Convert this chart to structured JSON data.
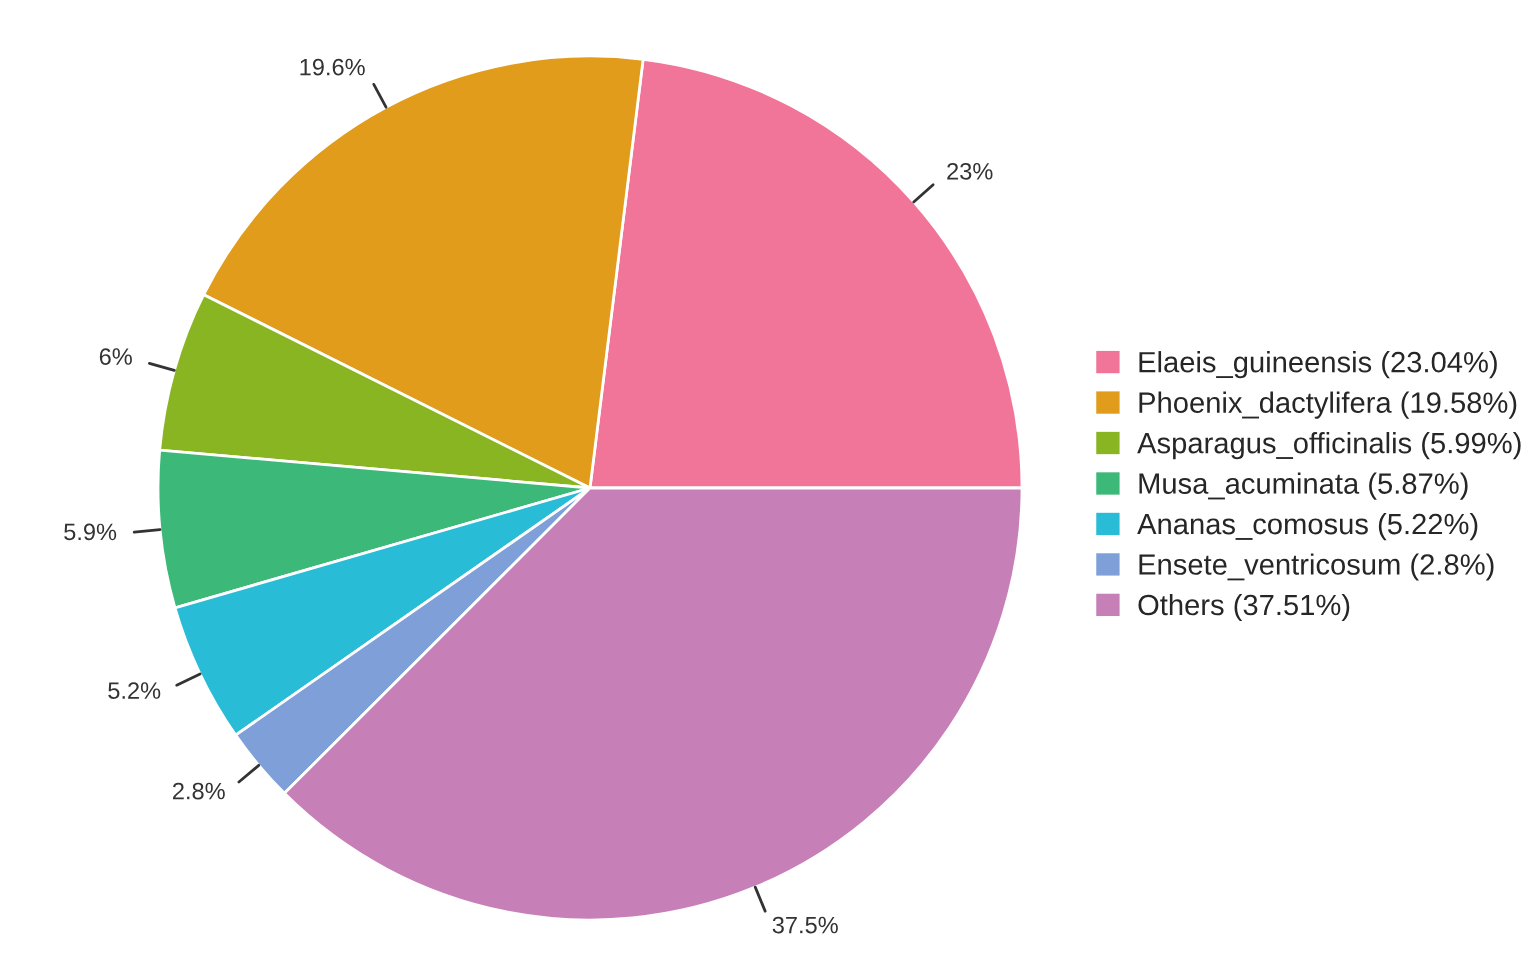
{
  "chart_data": {
    "type": "pie",
    "categories": [
      "Elaeis_guineensis (23.04%)",
      "Phoenix_dactylifera (19.58%)",
      "Asparagus_officinalis (5.99%)",
      "Musa_acuminata (5.87%)",
      "Ananas_comosus (5.22%)",
      "Ensete_ventricosum (2.8%)",
      "Others (37.51%)"
    ],
    "values": [
      23.04,
      19.58,
      5.99,
      5.87,
      5.22,
      2.8,
      37.51
    ],
    "value_labels": [
      "23%",
      "19.6%",
      "6%",
      "5.9%",
      "5.2%",
      "2.8%",
      "37.5%"
    ],
    "colors": [
      "#f07599",
      "#e09c1a",
      "#8ab522",
      "#3cb878",
      "#29bcd6",
      "#7f9fd8",
      "#c77fb8"
    ],
    "legend": "right"
  }
}
